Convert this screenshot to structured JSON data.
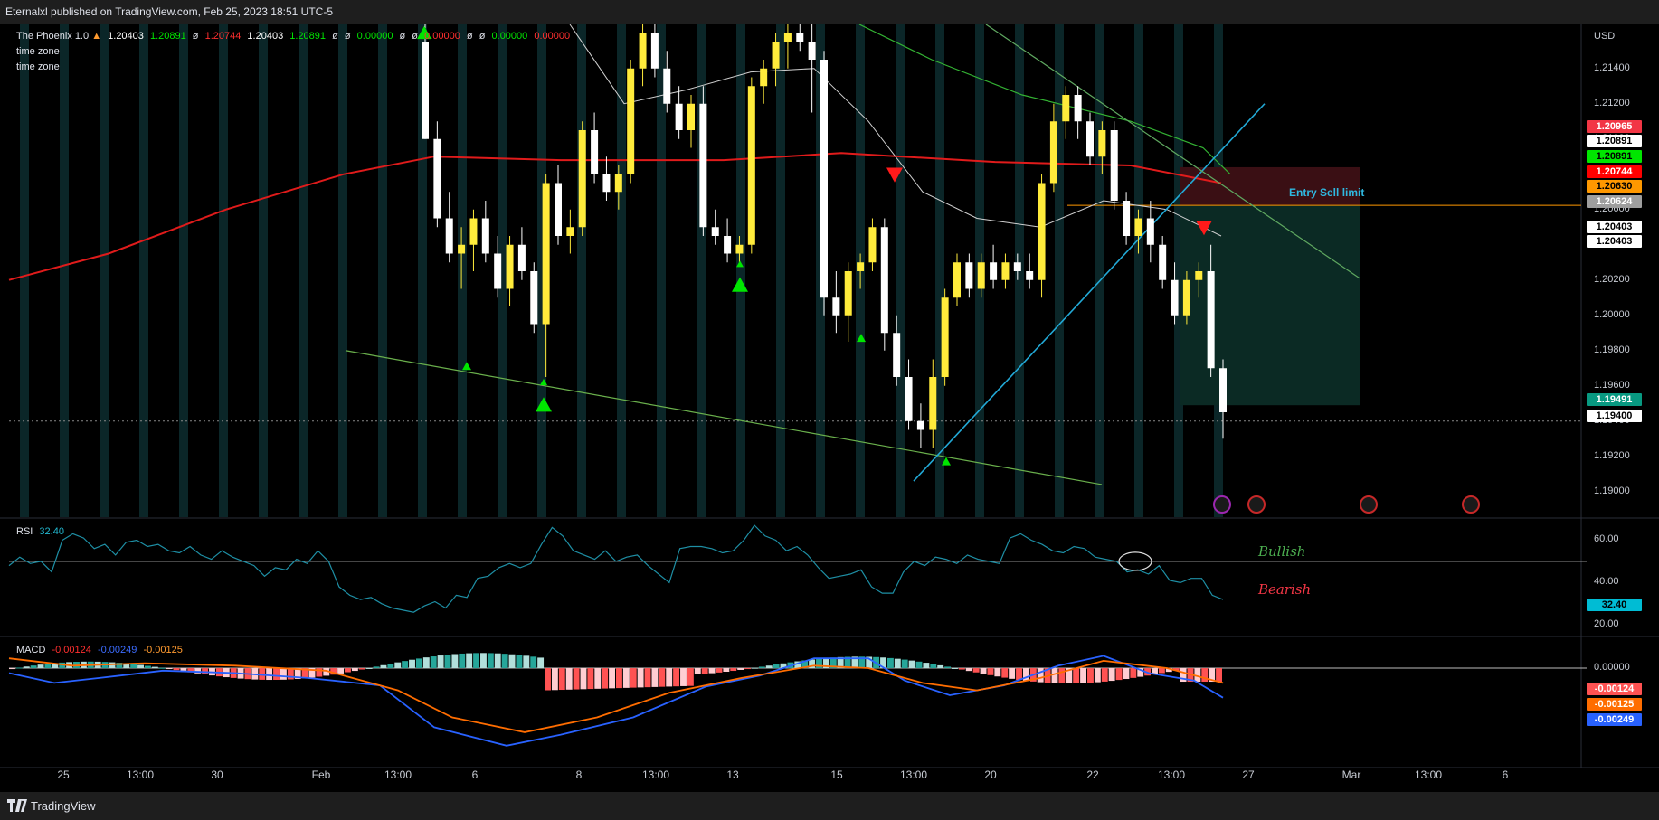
{
  "header": {
    "published_by": "Eternalxl published on TradingView.com, Feb 25, 2023 18:51 UTC-5"
  },
  "footer": {
    "brand": "TradingView"
  },
  "indicator_legend": {
    "name": "The Phoenix 1.0",
    "fire_icon": "fire-icon",
    "open": "1.20403",
    "high": "1.20891",
    "low": "1.20744",
    "close": "1.20403",
    "ma": "1.20891",
    "phi": "ø",
    "zero_green": "0.00000",
    "zero_red": "0.00000",
    "line2": "time zone",
    "line3": "time zone"
  },
  "rsi_legend": {
    "name": "RSI",
    "value": "32.40"
  },
  "macd_legend": {
    "name": "MACD",
    "hist": "-0.00124",
    "macd": "-0.00249",
    "signal": "-0.00125"
  },
  "annotations": {
    "entry": "Entry Sell limit",
    "bullish": "Bullish",
    "bearish": "Bearish"
  },
  "price_axis": {
    "currency": "USD",
    "ticks": [
      "1.21400",
      "1.21200",
      "1.21000",
      "1.20800",
      "1.20600",
      "1.20400",
      "1.20200",
      "1.20000",
      "1.19800",
      "1.19600",
      "1.19400",
      "1.19200",
      "1.19000"
    ]
  },
  "price_tags": [
    {
      "value": "1.20965",
      "bg": "#f23645",
      "fg": "#ffffff"
    },
    {
      "value": "1.20891",
      "bg": "#ffffff",
      "fg": "#000000"
    },
    {
      "value": "1.20891",
      "bg": "#00e600",
      "fg": "#000000"
    },
    {
      "value": "1.20744",
      "bg": "#ff0000",
      "fg": "#ffffff"
    },
    {
      "value": "1.20630",
      "bg": "#ff9800",
      "fg": "#000000"
    },
    {
      "value": "1.20624",
      "bg": "#9e9e9e",
      "fg": "#ffffff"
    },
    {
      "value": "1.20403",
      "bg": "#ffffff",
      "fg": "#000000"
    },
    {
      "value": "1.20403",
      "bg": "#ffffff",
      "fg": "#000000"
    },
    {
      "value": "1.19491",
      "bg": "#089981",
      "fg": "#ffffff"
    },
    {
      "value": "1.19400",
      "bg": "#ffffff",
      "fg": "#000000"
    }
  ],
  "rsi_axis": {
    "ticks": [
      "60.00",
      "40.00",
      "20.00"
    ],
    "tag": "32.40"
  },
  "macd_axis": {
    "ticks": [
      "0.00000"
    ],
    "tags": [
      {
        "value": "-0.00124",
        "bg": "#ff5252",
        "fg": "#ffffff"
      },
      {
        "value": "-0.00125",
        "bg": "#ff6d00",
        "fg": "#ffffff"
      },
      {
        "value": "-0.00249",
        "bg": "#2962ff",
        "fg": "#ffffff"
      }
    ]
  },
  "time_axis": [
    "25",
    "13:00",
    "30",
    "Feb",
    "13:00",
    "6",
    "8",
    "13:00",
    "13",
    "15",
    "13:00",
    "20",
    "22",
    "13:00",
    "27",
    "Mar",
    "13:00",
    "6"
  ],
  "colors": {
    "bull_candle": "#ffeb3b",
    "bear_candle": "#ffffff",
    "ma_red": "#e01b1b",
    "ma_green": "#33b233",
    "ma_white": "#d0d0d0",
    "trend_blue": "#22a9d6",
    "rsi_line": "#1e8fa5",
    "macd_line": "#2962ff",
    "signal_line": "#ff6d00",
    "session_band": "#0b2628"
  },
  "chart_data": {
    "type": "candlestick",
    "symbol_hint": "EURUSD",
    "y_unit": "price",
    "ylim": [
      1.1885,
      1.2165
    ],
    "candles": [
      [
        1.2155,
        1.2165,
        1.21,
        1.21
      ],
      [
        1.21,
        1.211,
        1.205,
        1.2055
      ],
      [
        1.2055,
        1.207,
        1.203,
        1.2035
      ],
      [
        1.2035,
        1.205,
        1.2015,
        1.204
      ],
      [
        1.204,
        1.206,
        1.2025,
        1.2055
      ],
      [
        1.2055,
        1.2065,
        1.203,
        1.2035
      ],
      [
        1.2035,
        1.2045,
        1.201,
        1.2015
      ],
      [
        1.2015,
        1.2045,
        1.2005,
        1.204
      ],
      [
        1.204,
        1.205,
        1.202,
        1.2025
      ],
      [
        1.2025,
        1.203,
        1.199,
        1.1995
      ],
      [
        1.1995,
        1.208,
        1.1965,
        1.2075
      ],
      [
        1.2075,
        1.2085,
        1.204,
        1.2045
      ],
      [
        1.2045,
        1.206,
        1.2035,
        1.205
      ],
      [
        1.205,
        1.211,
        1.2045,
        1.2105
      ],
      [
        1.2105,
        1.2115,
        1.2075,
        1.208
      ],
      [
        1.208,
        1.209,
        1.2065,
        1.207
      ],
      [
        1.207,
        1.2085,
        1.206,
        1.208
      ],
      [
        1.208,
        1.2145,
        1.2075,
        1.214
      ],
      [
        1.214,
        1.2165,
        1.213,
        1.216
      ],
      [
        1.216,
        1.2165,
        1.2135,
        1.214
      ],
      [
        1.214,
        1.215,
        1.2115,
        1.212
      ],
      [
        1.212,
        1.213,
        1.21,
        1.2105
      ],
      [
        1.2105,
        1.2125,
        1.2095,
        1.212
      ],
      [
        1.212,
        1.213,
        1.2045,
        1.205
      ],
      [
        1.205,
        1.206,
        1.204,
        1.2045
      ],
      [
        1.2045,
        1.2055,
        1.203,
        1.2035
      ],
      [
        1.2035,
        1.2045,
        1.203,
        1.204
      ],
      [
        1.204,
        1.2135,
        1.2035,
        1.213
      ],
      [
        1.213,
        1.2145,
        1.212,
        1.214
      ],
      [
        1.214,
        1.216,
        1.213,
        1.2155
      ],
      [
        1.2155,
        1.2165,
        1.214,
        1.216
      ],
      [
        1.216,
        1.2165,
        1.215,
        1.2155
      ],
      [
        1.2155,
        1.2165,
        1.2115,
        1.2145
      ],
      [
        1.2145,
        1.215,
        1.2,
        1.201
      ],
      [
        1.201,
        1.2025,
        1.199,
        1.2
      ],
      [
        1.2,
        1.203,
        1.1985,
        1.2025
      ],
      [
        1.2025,
        1.2035,
        1.2015,
        1.203
      ],
      [
        1.203,
        1.2055,
        1.2025,
        1.205
      ],
      [
        1.205,
        1.2055,
        1.198,
        1.199
      ],
      [
        1.199,
        1.2,
        1.196,
        1.1965
      ],
      [
        1.1965,
        1.1975,
        1.1935,
        1.194
      ],
      [
        1.194,
        1.195,
        1.1925,
        1.1935
      ],
      [
        1.1935,
        1.1975,
        1.1925,
        1.1965
      ],
      [
        1.1965,
        1.2015,
        1.196,
        1.201
      ],
      [
        1.201,
        1.2035,
        1.2005,
        1.203
      ],
      [
        1.203,
        1.2035,
        1.201,
        1.2015
      ],
      [
        1.2015,
        1.2035,
        1.201,
        1.203
      ],
      [
        1.203,
        1.204,
        1.2015,
        1.202
      ],
      [
        1.202,
        1.2035,
        1.2015,
        1.203
      ],
      [
        1.203,
        1.2035,
        1.202,
        1.2025
      ],
      [
        1.2025,
        1.2035,
        1.2015,
        1.202
      ],
      [
        1.202,
        1.208,
        1.201,
        1.2075
      ],
      [
        1.2075,
        1.212,
        1.207,
        1.211
      ],
      [
        1.211,
        1.213,
        1.21,
        1.2125
      ],
      [
        1.2125,
        1.213,
        1.21,
        1.211
      ],
      [
        1.211,
        1.2115,
        1.2085,
        1.209
      ],
      [
        1.209,
        1.211,
        1.208,
        1.2105
      ],
      [
        1.2105,
        1.211,
        1.206,
        1.2065
      ],
      [
        1.2065,
        1.207,
        1.204,
        1.2045
      ],
      [
        1.2045,
        1.206,
        1.2035,
        1.2055
      ],
      [
        1.2055,
        1.2065,
        1.203,
        1.204
      ],
      [
        1.204,
        1.2045,
        1.2015,
        1.202
      ],
      [
        1.202,
        1.203,
        1.1995,
        1.2
      ],
      [
        1.2,
        1.2025,
        1.1995,
        1.202
      ],
      [
        1.202,
        1.203,
        1.201,
        1.2025
      ],
      [
        1.2025,
        1.204,
        1.1965,
        1.197
      ],
      [
        1.197,
        1.1975,
        1.193,
        1.1945
      ]
    ]
  }
}
